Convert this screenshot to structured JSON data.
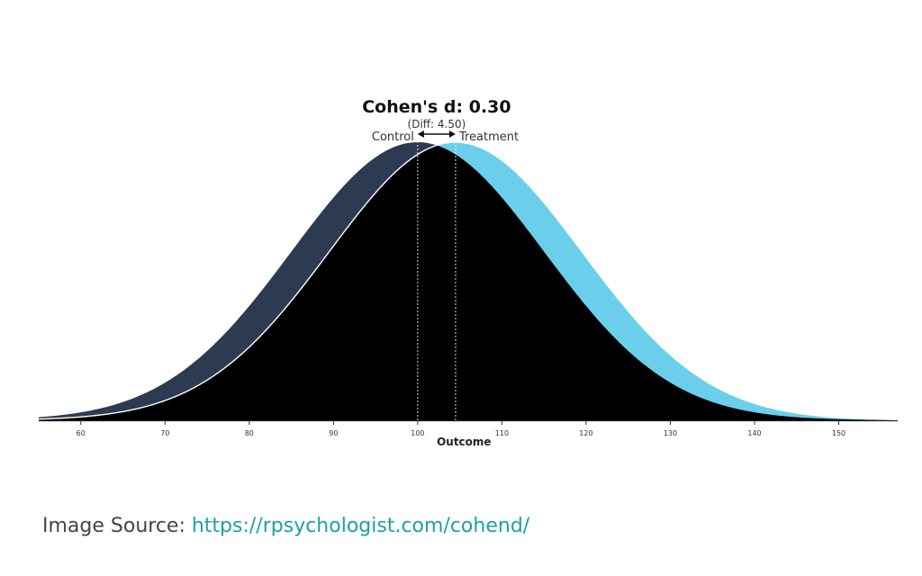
{
  "chart_data": {
    "type": "area",
    "title": "Cohen's d: 0.30",
    "subtitle": "(Diff: 4.50)",
    "xlabel": "Outcome",
    "ylabel": "",
    "xlim": [
      55,
      157
    ],
    "x_ticks": [
      60,
      70,
      80,
      90,
      100,
      110,
      120,
      130,
      140,
      150
    ],
    "grid": false,
    "series": [
      {
        "name": "Control",
        "mean": 100,
        "sd": 15,
        "color": "#2e3a52"
      },
      {
        "name": "Treatment",
        "mean": 104.5,
        "sd": 15,
        "color": "#6bcfeb"
      }
    ],
    "overlap_color": "#000000",
    "cohens_d": 0.3,
    "mean_difference": 4.5
  },
  "caption": {
    "label": "Image Source: ",
    "link_text": "https://rpsychologist.com/cohend/"
  }
}
